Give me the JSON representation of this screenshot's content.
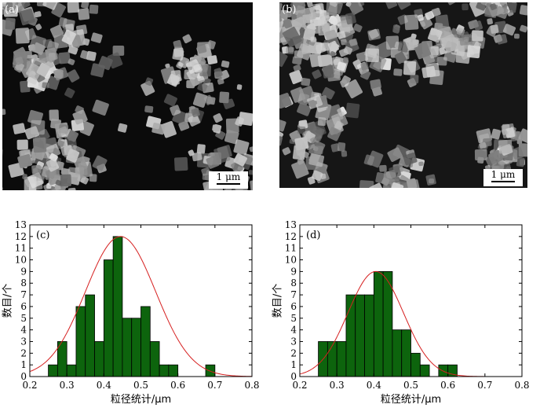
{
  "sem": [
    {
      "label": "(a)",
      "scale": "1 μm"
    },
    {
      "label": "(b)",
      "scale": "1 μm"
    }
  ],
  "chart_data": [
    {
      "type": "bar",
      "panel": "(c)",
      "title": "",
      "xlabel": "粒径统计/μm",
      "ylabel": "数目/个",
      "xlim": [
        0.2,
        0.8
      ],
      "ylim": [
        0,
        13
      ],
      "xticks": [
        "0.2",
        "0.3",
        "0.4",
        "0.5",
        "0.6",
        "0.7",
        "0.8"
      ],
      "yticks": [
        "0",
        "1",
        "2",
        "3",
        "4",
        "5",
        "6",
        "7",
        "8",
        "9",
        "10",
        "11",
        "12",
        "13"
      ],
      "bin_width": 0.025,
      "x": [
        0.2625,
        0.2875,
        0.3125,
        0.3375,
        0.3625,
        0.3875,
        0.4125,
        0.4375,
        0.4625,
        0.4875,
        0.5125,
        0.5375,
        0.5625,
        0.5875,
        0.6125,
        0.6375,
        0.6625,
        0.6875
      ],
      "values": [
        1,
        3,
        1,
        6,
        7,
        3,
        10,
        12,
        5,
        5,
        6,
        3,
        1,
        1,
        0,
        0,
        0,
        1
      ],
      "fit": {
        "mean": 0.445,
        "sigma": 0.095,
        "peak": 12
      },
      "bar_color": "#0d640d",
      "fit_color": "#d62020",
      "grid": false
    },
    {
      "type": "bar",
      "panel": "(d)",
      "title": "",
      "xlabel": "粒径统计/μm",
      "ylabel": "数目/个",
      "xlim": [
        0.2,
        0.8
      ],
      "ylim": [
        0,
        13
      ],
      "xticks": [
        "0.2",
        "0.3",
        "0.4",
        "0.5",
        "0.6",
        "0.7",
        "0.8"
      ],
      "yticks": [
        "0",
        "1",
        "2",
        "3",
        "4",
        "5",
        "6",
        "7",
        "8",
        "9",
        "10",
        "11",
        "12",
        "13"
      ],
      "bin_width": 0.025,
      "x": [
        0.2625,
        0.2875,
        0.3125,
        0.3375,
        0.3625,
        0.3875,
        0.4125,
        0.4375,
        0.4625,
        0.4875,
        0.5125,
        0.5375,
        0.5625,
        0.5875,
        0.6125
      ],
      "values": [
        3,
        3,
        3,
        7,
        7,
        7,
        9,
        9,
        4,
        4,
        2,
        1,
        0,
        1,
        1
      ],
      "fit": {
        "mean": 0.405,
        "sigma": 0.075,
        "peak": 9
      },
      "bar_color": "#0d640d",
      "fit_color": "#d62020",
      "grid": false
    }
  ]
}
